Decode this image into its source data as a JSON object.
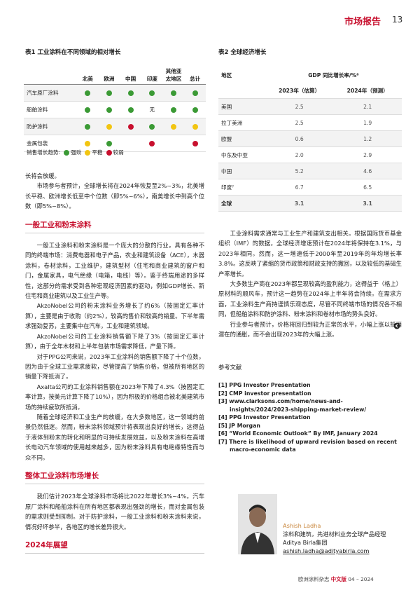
{
  "header": {
    "section": "市场报告",
    "page": "13"
  },
  "table1": {
    "title": "表1 工业涂料在不同领域的相对增长",
    "columns": [
      "北美",
      "欧洲",
      "中国",
      "印度",
      "其他亚太地区",
      "总计"
    ],
    "rows": [
      {
        "label": "汽车原厂涂料",
        "cells": [
          "#3b9a35",
          "#3b9a35",
          "#3b9a35",
          "#3b9a35",
          "#3b9a35",
          "#3b9a35"
        ]
      },
      {
        "label": "船舶涂料",
        "cells": [
          "#3b9a35",
          "#3b9a35",
          "#3b9a35",
          "无",
          "#3b9a35",
          "#3b9a35"
        ]
      },
      {
        "label": "防护涂料",
        "cells": [
          "#3b9a35",
          "#f2c511",
          "#c8102e",
          "#3b9a35",
          "#f2c511",
          "#f2c511"
        ]
      },
      {
        "label": "金属包装",
        "cells": [
          "#f2c511",
          "#3b9a35",
          null,
          "#c8102e",
          null,
          "#c8102e"
        ]
      }
    ],
    "legend": {
      "label": "销售增长趋势:",
      "items": [
        {
          "name": "强劲",
          "color": "#3b9a35"
        },
        {
          "name": "平稳",
          "color": "#f2c511"
        },
        {
          "name": "较弱",
          "color": "#c8102e"
        }
      ]
    }
  },
  "table2": {
    "title": "表2 全球经济增长",
    "header": [
      "地区",
      "GDP 同比增长率/%⁶"
    ],
    "subheader": [
      "2023年（估算）",
      "2024年（预测）"
    ],
    "rows": [
      [
        "美国",
        "2.5",
        "2.1"
      ],
      [
        "拉丁美洲",
        "2.5",
        "1.9"
      ],
      [
        "欧盟",
        "0.6",
        "1.2"
      ],
      [
        "中东及中亚",
        "2.0",
        "2.9"
      ],
      [
        "中国",
        "5.2",
        "4.6"
      ],
      [
        "印度⁷",
        "6.7",
        "6.5"
      ],
      [
        "全球",
        "3.1",
        "3.1"
      ]
    ]
  },
  "left_column": [
    {
      "text": "长将会放缓。"
    },
    {
      "text": "市场参与者预计，全球增长将在2024年恢复至2%~3%，北美增长平稳、欧洲增长低至中个位数（即5%~6%），南美增长中到高个位数（即5%~8%）。"
    },
    {
      "heading": "一般工业和粉末涂料"
    },
    {
      "text": "一般工业涂料和粉末涂料是一个庞大的分散的行业，具有各种不同的终端市场：消费电器和电子产品，农业和建筑设备（ACE），木器涂料，卷材涂料，工业维护，建筑型材（住宅和商业建筑的窗户和门，金属家具，电气绝缘（电箱，电线）等）。鉴于终端用途的多样性，这部分的需求受到各种宏观经济因素的驱动，例如GDP增长、新住宅和商业建筑以及工业生产等。"
    },
    {
      "text": "AkzoNobel公司的粉末涂料业务增长了约6%（按固定汇率计算），主要是由于收购（约2%），较高的售价和较高的销量。下半年需求强劲复苏，主要集中在汽车，工业和建筑领域。"
    },
    {
      "text": "AkzoNobel公司的工业涂料销售额下降了3%（按固定汇率计算），由于全年木材和上半年包装市场需求降低，产量下降。"
    },
    {
      "text": "对于PPG公司来说，2023年工业涂料的销售额下降了十个位数，因为由于全球工业需求疲软，尽管提高了销售价格，但被所有地区的销量下降抵消了。"
    },
    {
      "text": "Axalta公司的工业涂料销售额在2023年下降了4.3%（按固定汇率计算，按美元计算下降了10%），因为积极的价格组合被北美建筑市场的持续疲软所抵消。"
    },
    {
      "text": "随着全球经济和工业生产的放缓，在大多数地区，这一领域的前景仍然低迷。然而，粉末涂料领域预计将表现出良好的增长，这得益于液体到粉末的转化和明显的可持续发展效益，以及粉末涂料在高增长电动汽车领域的使用越来越多，因为粉末涂料具有电绝缘特性而与众不同。"
    },
    {
      "heading": "整体工业涂料市场增长"
    },
    {
      "text": "我们估计2023年全球涂料市场将比2022年增长3%~4%。汽车原厂涂料和船舶涂料在所有地区都表现出强劲的增长，而对金属包装的需求则受到抑制。对于防护涂料，一般工业涂料和粉末涂料来说，情况好坏参半，各地区的增长差异很大。"
    },
    {
      "heading": "2024年展望"
    }
  ],
  "right_column": [
    {
      "text": "工业涂料需求通常与工业生产和建筑支出相关。根据国际货币基金组织（IMF）的数据，全球经济增速预计在2024年将保持在3.1%，与2023年相同。然而，这一增速低于2000年至2019年的年均增长率3.8%。这反映了紧缩的货币政策和财政支持的撤回，以及较低的基础生产率增长。"
    },
    {
      "text": "大多数生产商在2023年都呈现较高的盈利能力，这得益于（格上）原材料的顺风车，预计这一趋势在2024年上半年将会持续。在需求方面，工业涂料生产商持谨慎乐观态度，尽管不同终端市场的情况各不相同，但船舶涂料和防护涂料、粉末涂料和卷材市场的势头良好。"
    },
    {
      "text": "行业参与者预计，价格将回归到较为正常的水平，小幅上涨以抵消潜在的通胀，而不会出现2023年的大幅上涨。"
    }
  ],
  "references": {
    "title": "参考文献",
    "items": [
      "[1]  PPG Investor Presentation",
      "[2]  CMP investor presentation",
      "[3]  www.clarksons.com/home/news-and-insights/2024/2023-shipping-market-review/",
      "[4]  PPG Investor Presentation",
      "[5]  JP Morgan",
      "[6]  “World Economic Outlook” By IMF, January 2024",
      "[7]  There is likelihood of upward revision based on recent macro-economic  data"
    ]
  },
  "author": {
    "name": "Ashish Ladha",
    "role": "涂料和建筑，先进材料业务全球产品经理",
    "company": "Aditya Birla集团",
    "email": "ashish.ladha@adityabirla.com"
  },
  "footer": {
    "magazine": "欧洲涂料杂志",
    "edition": "中文版",
    "issue": "04 – 2024"
  }
}
